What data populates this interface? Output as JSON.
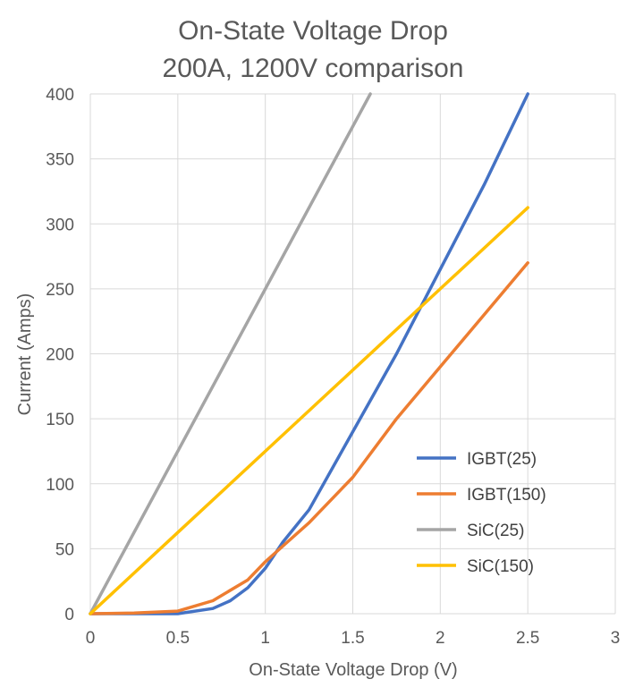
{
  "chart_data": {
    "type": "line",
    "title": "On-State Voltage Drop",
    "subtitle": "200A, 1200V comparison",
    "xlabel": "On-State Voltage Drop (V)",
    "ylabel": "Current (Amps)",
    "xlim": [
      0,
      3
    ],
    "ylim": [
      0,
      400
    ],
    "x_ticks": [
      "0",
      "0.5",
      "1",
      "1.5",
      "2",
      "2.5",
      "3"
    ],
    "y_ticks": [
      "0",
      "50",
      "100",
      "150",
      "200",
      "250",
      "300",
      "350",
      "400"
    ],
    "grid": true,
    "legend_position": "bottom-right",
    "series": [
      {
        "name": "IGBT(25)",
        "color": "#4472C4",
        "x": [
          0,
          0.25,
          0.5,
          0.7,
          0.8,
          0.9,
          1.0,
          1.1,
          1.25,
          1.5,
          1.75,
          2.0,
          2.25,
          2.5
        ],
        "y": [
          0,
          0,
          0,
          4,
          10,
          20,
          35,
          55,
          80,
          140,
          200,
          265,
          330,
          400
        ]
      },
      {
        "name": "IGBT(150)",
        "color": "#ED7D31",
        "x": [
          0,
          0.25,
          0.5,
          0.7,
          0.9,
          1.0,
          1.1,
          1.25,
          1.5,
          1.75,
          2.0,
          2.25,
          2.5
        ],
        "y": [
          0,
          0.5,
          2,
          10,
          26,
          40,
          52,
          70,
          105,
          150,
          190,
          230,
          270
        ]
      },
      {
        "name": "SiC(25)",
        "color": "#A5A5A5",
        "x": [
          0,
          0.5,
          1.0,
          1.5,
          1.6
        ],
        "y": [
          0,
          125,
          250,
          375,
          400
        ]
      },
      {
        "name": "SiC(150)",
        "color": "#FFC000",
        "x": [
          0,
          0.5,
          1.0,
          1.5,
          2.0,
          2.5
        ],
        "y": [
          0,
          62.5,
          125,
          187.5,
          250,
          312.5
        ]
      }
    ]
  }
}
